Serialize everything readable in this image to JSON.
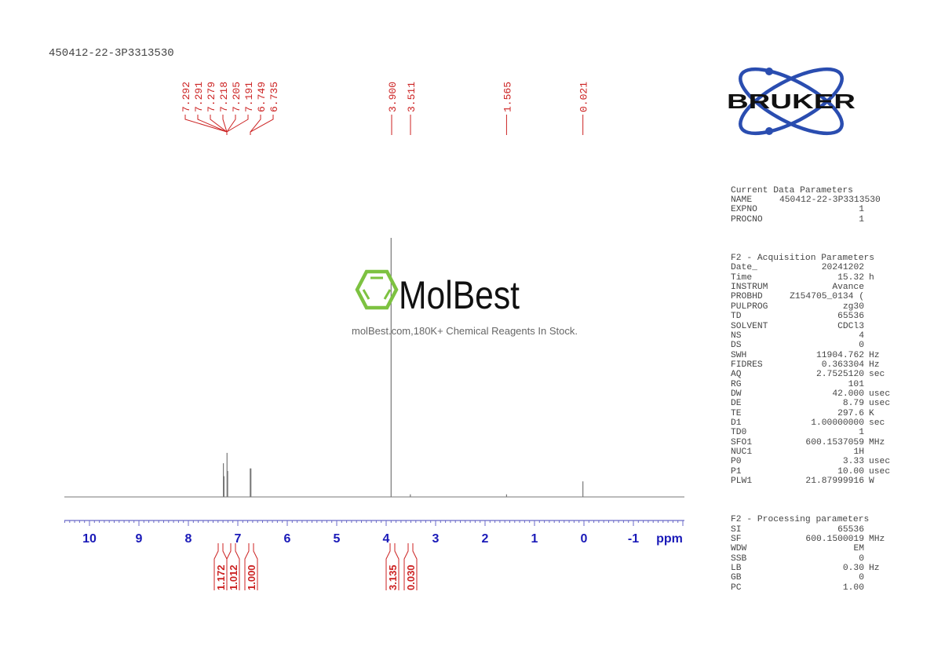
{
  "header": {
    "title": "450412-22-3P3313530"
  },
  "peak_labels": {
    "group1": [
      "7.292",
      "7.291",
      "7.279",
      "7.218",
      "7.205",
      "7.191",
      "6.749",
      "6.735"
    ],
    "single": [
      {
        "label": "3.900",
        "ppm": 3.9
      },
      {
        "label": "3.511",
        "ppm": 3.511
      },
      {
        "label": "1.565",
        "ppm": 1.565
      },
      {
        "label": "0.021",
        "ppm": 0.021
      }
    ]
  },
  "integrals": [
    {
      "label": "1.172",
      "ppm": 7.29
    },
    {
      "label": "1.012",
      "ppm": 7.2
    },
    {
      "label": "1.000",
      "ppm": 6.74
    },
    {
      "label": "3.135",
      "ppm": 3.9
    },
    {
      "label": "0.030",
      "ppm": 3.51
    }
  ],
  "axis": {
    "ticks": [
      "10",
      "9",
      "8",
      "7",
      "6",
      "5",
      "4",
      "3",
      "2",
      "1",
      "0",
      "-1"
    ],
    "unit": "ppm"
  },
  "watermark": {
    "brand": "MolBest",
    "tagline": "molBest.com,180K+ Chemical Reagents In Stock."
  },
  "logo": {
    "text": "BRUKER"
  },
  "parameters": {
    "current": {
      "heading": "Current Data Parameters",
      "rows": [
        {
          "k": "NAME",
          "v": "450412-22-3P3313530",
          "u": ""
        },
        {
          "k": "EXPNO",
          "v": "1",
          "u": ""
        },
        {
          "k": "PROCNO",
          "v": "1",
          "u": ""
        }
      ]
    },
    "acquisition": {
      "heading": "F2 - Acquisition Parameters",
      "rows": [
        {
          "k": "Date_",
          "v": "20241202",
          "u": ""
        },
        {
          "k": "Time",
          "v": "15.32",
          "u": "h"
        },
        {
          "k": "INSTRUM",
          "v": "Avance",
          "u": ""
        },
        {
          "k": "PROBHD",
          "v": "Z154705_0134 (",
          "u": ""
        },
        {
          "k": "PULPROG",
          "v": "zg30",
          "u": ""
        },
        {
          "k": "TD",
          "v": "65536",
          "u": ""
        },
        {
          "k": "SOLVENT",
          "v": "CDCl3",
          "u": ""
        },
        {
          "k": "NS",
          "v": "4",
          "u": ""
        },
        {
          "k": "DS",
          "v": "0",
          "u": ""
        },
        {
          "k": "SWH",
          "v": "11904.762",
          "u": "Hz"
        },
        {
          "k": "FIDRES",
          "v": "0.363304",
          "u": "Hz"
        },
        {
          "k": "AQ",
          "v": "2.7525120",
          "u": "sec"
        },
        {
          "k": "RG",
          "v": "101",
          "u": ""
        },
        {
          "k": "DW",
          "v": "42.000",
          "u": "usec"
        },
        {
          "k": "DE",
          "v": "8.79",
          "u": "usec"
        },
        {
          "k": "TE",
          "v": "297.6",
          "u": "K"
        },
        {
          "k": "D1",
          "v": "1.00000000",
          "u": "sec"
        },
        {
          "k": "TD0",
          "v": "1",
          "u": ""
        },
        {
          "k": "SFO1",
          "v": "600.1537059",
          "u": "MHz"
        },
        {
          "k": "NUC1",
          "v": "1H",
          "u": ""
        },
        {
          "k": "P0",
          "v": "3.33",
          "u": "usec"
        },
        {
          "k": "P1",
          "v": "10.00",
          "u": "usec"
        },
        {
          "k": "PLW1",
          "v": "21.87999916",
          "u": "W"
        }
      ]
    },
    "processing": {
      "heading": "F2 - Processing parameters",
      "rows": [
        {
          "k": "SI",
          "v": "65536",
          "u": ""
        },
        {
          "k": "SF",
          "v": "600.1500019",
          "u": "MHz"
        },
        {
          "k": "WDW",
          "v": "EM",
          "u": ""
        },
        {
          "k": "SSB",
          "v": "0",
          "u": ""
        },
        {
          "k": "LB",
          "v": "0.30",
          "u": "Hz"
        },
        {
          "k": "GB",
          "v": "0",
          "u": ""
        },
        {
          "k": "PC",
          "v": "1.00",
          "u": ""
        }
      ]
    }
  },
  "colors": {
    "spectrum": "#777777",
    "labels": "#cc2222",
    "axis": "#1a1ab8",
    "logo_blue": "#2a4db0",
    "wm_green": "#7dc241"
  },
  "chart_data": {
    "type": "line",
    "title": "450412-22-3P3313530",
    "xlabel": "ppm",
    "ylabel": "",
    "xlim": [
      10.5,
      -2.0
    ],
    "x_reversed": true,
    "x_ticks": [
      10,
      9,
      8,
      7,
      6,
      5,
      4,
      3,
      2,
      1,
      0,
      -1
    ],
    "peaks": [
      {
        "ppm": 7.292,
        "rel_height": 0.13
      },
      {
        "ppm": 7.279,
        "rel_height": 0.08
      },
      {
        "ppm": 7.218,
        "rel_height": 0.17
      },
      {
        "ppm": 7.205,
        "rel_height": 0.1
      },
      {
        "ppm": 6.749,
        "rel_height": 0.11
      },
      {
        "ppm": 6.735,
        "rel_height": 0.11
      },
      {
        "ppm": 3.9,
        "rel_height": 1.0
      },
      {
        "ppm": 3.511,
        "rel_height": 0.01
      },
      {
        "ppm": 1.565,
        "rel_height": 0.01
      },
      {
        "ppm": 0.021,
        "rel_height": 0.06
      }
    ],
    "integrals": [
      {
        "range_ppm": [
          7.35,
          7.25
        ],
        "value": 1.172
      },
      {
        "range_ppm": [
          7.25,
          7.15
        ],
        "value": 1.012
      },
      {
        "range_ppm": [
          6.8,
          6.68
        ],
        "value": 1.0
      },
      {
        "range_ppm": [
          3.95,
          3.85
        ],
        "value": 3.135
      },
      {
        "range_ppm": [
          3.55,
          3.47
        ],
        "value": 0.03
      }
    ],
    "grid": false
  }
}
